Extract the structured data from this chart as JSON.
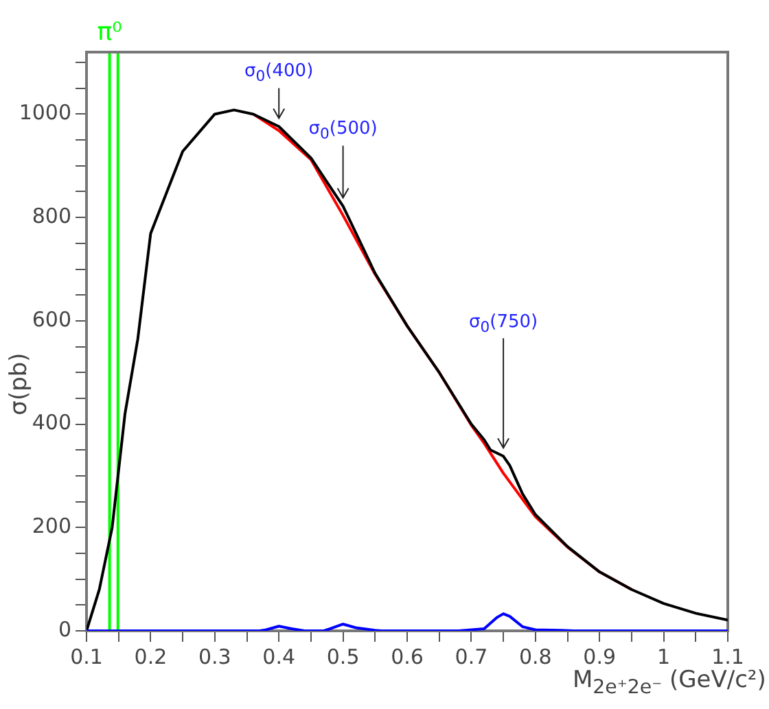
{
  "chart_data": {
    "type": "line",
    "xlabel": "M$_{2e⁺2e⁻}$ (GeV/c²)",
    "ylabel": "σ(pb)",
    "xlim": [
      0.1,
      1.1
    ],
    "ylim": [
      0,
      1120
    ],
    "xticks": [
      0.1,
      {
        "value": 0.15,
        "label": null
      },
      0.2,
      {
        "value": 0.25,
        "label": null
      },
      0.3,
      {
        "value": 0.35,
        "label": null
      },
      0.4,
      {
        "value": 0.45,
        "label": null
      },
      0.5,
      {
        "value": 0.55,
        "label": null
      },
      0.6,
      {
        "value": 0.65,
        "label": null
      },
      0.7,
      {
        "value": 0.75,
        "label": null
      },
      0.8,
      {
        "value": 0.85,
        "label": null
      },
      0.9,
      {
        "value": 0.95,
        "label": null
      },
      1,
      {
        "value": 1.05,
        "label": null
      },
      1.1
    ],
    "yticks": [
      0,
      {
        "value": 50,
        "label": null
      },
      200,
      {
        "value": 150,
        "label": null
      },
      {
        "value": 100,
        "label": null
      },
      {
        "value": 250,
        "label": null
      },
      {
        "value": 300,
        "label": null
      },
      {
        "value": 350,
        "label": null
      },
      400,
      {
        "value": 450,
        "label": null
      },
      {
        "value": 500,
        "label": null
      },
      {
        "value": 550,
        "label": null
      },
      600,
      {
        "value": 650,
        "label": null
      },
      {
        "value": 700,
        "label": null
      },
      {
        "value": 750,
        "label": null
      },
      800,
      {
        "value": 850,
        "label": null
      },
      {
        "value": 900,
        "label": null
      },
      {
        "value": 950,
        "label": null
      },
      1000,
      {
        "value": 1050,
        "label": null
      },
      {
        "value": 1100,
        "label": null
      }
    ],
    "grid": false,
    "legend": false,
    "marker": "none",
    "line_style": "solid",
    "series": [
      {
        "color": "#ff0000",
        "x": [
          0.36,
          0.4,
          0.45,
          0.5,
          0.55,
          0.6,
          0.65,
          0.7,
          0.72,
          0.75,
          0.8,
          0.85,
          0.9,
          0.95
        ],
        "values": [
          1000,
          968,
          912,
          804,
          690,
          590,
          500,
          398,
          363,
          305,
          221,
          162,
          114,
          80
        ]
      },
      {
        "color": "#000000",
        "x": [
          0.1,
          0.12,
          0.14,
          0.16,
          0.18,
          0.2,
          0.25,
          0.3,
          0.33,
          0.36,
          0.4,
          0.45,
          0.5,
          0.55,
          0.6,
          0.65,
          0.7,
          0.72,
          0.73,
          0.75,
          0.76,
          0.78,
          0.8,
          0.85,
          0.9,
          0.95,
          1,
          1.05,
          1.1
        ],
        "values": [
          0,
          80,
          200,
          420,
          565,
          769,
          928,
          1000,
          1008,
          1000,
          976,
          915,
          822,
          692,
          590,
          500,
          400,
          370,
          350,
          338,
          320,
          265,
          225,
          163,
          114,
          80,
          53,
          34,
          21
        ]
      },
      {
        "color": "#0000ff",
        "x": [
          0.1,
          0.37,
          0.38,
          0.4,
          0.42,
          0.44,
          0.47,
          0.48,
          0.5,
          0.52,
          0.55,
          0.56,
          0.68,
          0.72,
          0.74,
          0.75,
          0.76,
          0.78,
          0.8,
          0.84,
          0.86,
          1.1
        ],
        "values": [
          0,
          0,
          2,
          9,
          4,
          0,
          0,
          4,
          13,
          6,
          1,
          0,
          0,
          4,
          26,
          33,
          28,
          8,
          2,
          1,
          0,
          0
        ]
      }
    ],
    "ref_lines": [
      {
        "axis": "x",
        "value": 0.136,
        "label": "π⁰",
        "color": "#00ff00"
      },
      {
        "axis": "x",
        "value": 0.149,
        "label": null,
        "color": "#00ff00"
      }
    ],
    "annotations": [
      {
        "text": "σ$_{0}$(400)",
        "x": 0.4,
        "y": 976
      },
      {
        "text": "σ$_{0}$(500)",
        "x": 0.5,
        "y": 822
      },
      {
        "text": "σ$_{0}$(750)",
        "x": 0.75,
        "y": 338
      }
    ]
  }
}
